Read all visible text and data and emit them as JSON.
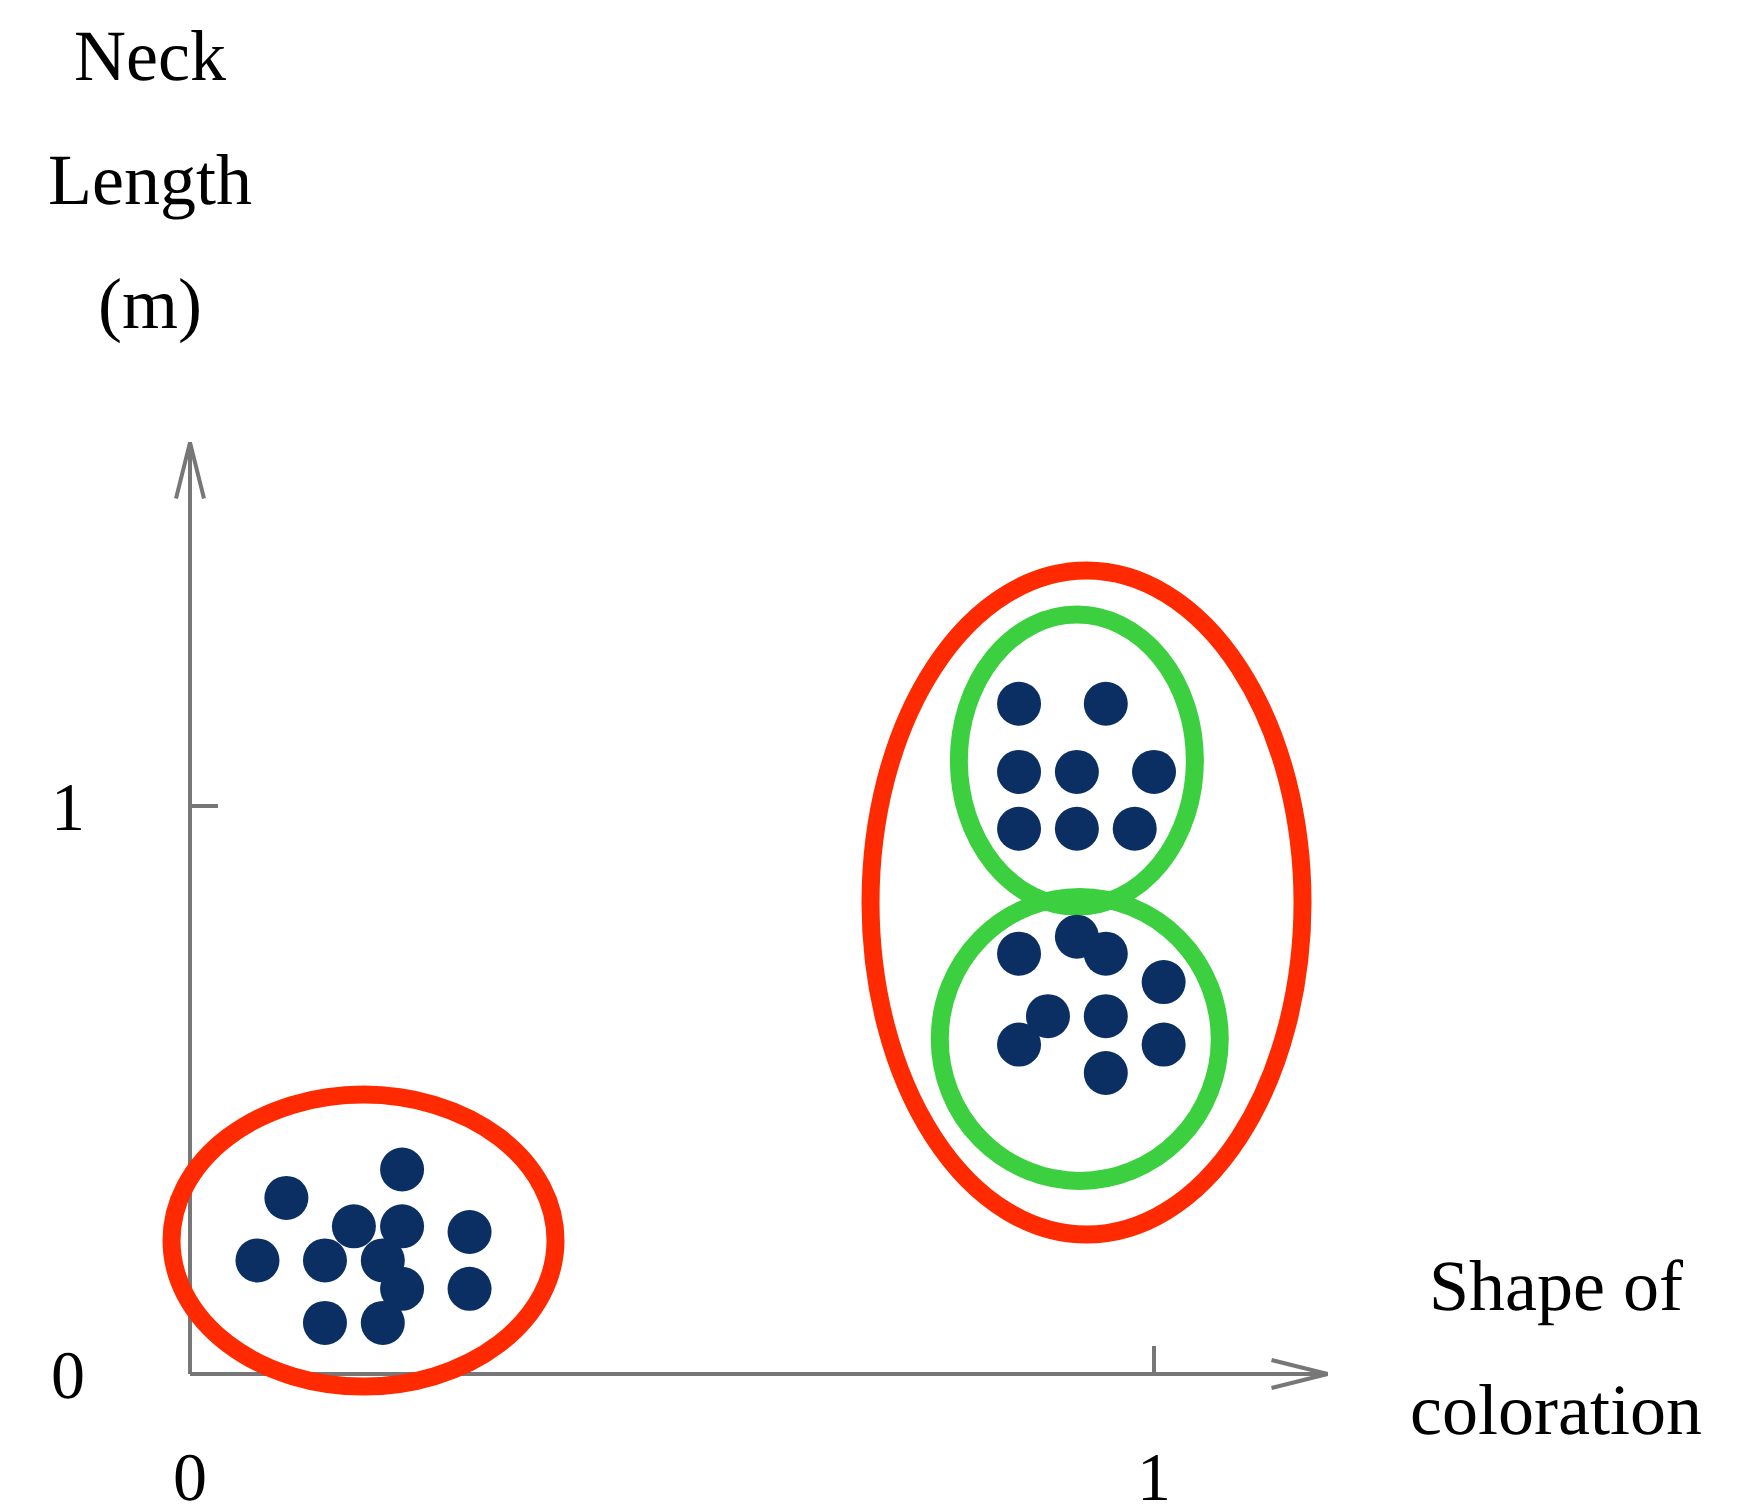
{
  "chart_data": {
    "type": "scatter",
    "xlabel": "Shape of coloration",
    "ylabel": "Neck Length (m)",
    "xlim": [
      0,
      1.18
    ],
    "ylim": [
      0,
      1.64
    ],
    "xticks": [
      0,
      1
    ],
    "yticks": [
      0,
      1
    ],
    "grid": false,
    "marker": "circle",
    "series": [
      {
        "color": "#0b2f63",
        "x": [
          0.1,
          0.22,
          0.07,
          0.14,
          0.17,
          0.22,
          0.29,
          0.2,
          0.22,
          0.29,
          0.14,
          0.2,
          0.86,
          0.95,
          0.86,
          0.92,
          1.0,
          0.86,
          0.92,
          0.98,
          0.86,
          0.92,
          0.95,
          1.01,
          0.89,
          0.95,
          0.86,
          1.01,
          0.95
        ],
        "values": [
          0.31,
          0.36,
          0.2,
          0.2,
          0.26,
          0.26,
          0.25,
          0.2,
          0.15,
          0.15,
          0.09,
          0.09,
          1.18,
          1.18,
          1.06,
          1.06,
          1.06,
          0.96,
          0.96,
          0.96,
          0.74,
          0.77,
          0.74,
          0.69,
          0.63,
          0.63,
          0.58,
          0.58,
          0.53
        ]
      }
    ]
  }
}
